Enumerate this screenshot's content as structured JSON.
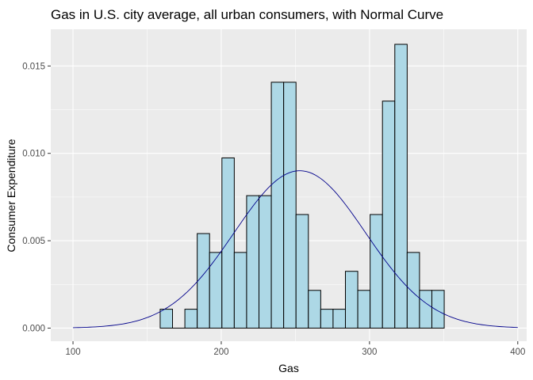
{
  "chart_data": {
    "type": "bar",
    "title": "Gas in U.S. city average, all urban consumers, with Normal Curve",
    "xlabel": "Gas",
    "ylabel": "Consumer Expenditure",
    "xlim": [
      85,
      406
    ],
    "ylim": [
      -0.00075,
      0.0171
    ],
    "x_ticks": [
      100,
      200,
      300,
      400
    ],
    "x_tick_labels": [
      "100",
      "200",
      "300",
      "400"
    ],
    "y_ticks": [
      0,
      0.005,
      0.01,
      0.015
    ],
    "y_tick_labels": [
      "0.000",
      "0.005",
      "0.010",
      "0.015"
    ],
    "grid": true,
    "bin_width": 8.33,
    "bin_start": 158.8,
    "histogram_density": [
      0.00108,
      0,
      0.00108,
      0.00541,
      0.00433,
      0.00974,
      0.00433,
      0.00758,
      0.00758,
      0.01407,
      0.01407,
      0.0065,
      0.00216,
      0.00108,
      0.00108,
      0.00325,
      0.00216,
      0.0065,
      0.01299,
      0.01624,
      0.00433,
      0.00216,
      0.00216
    ],
    "normal_curve": {
      "mean": 253,
      "sd": 44.3,
      "x_range": [
        100,
        400
      ]
    },
    "colors": {
      "panel_background": "#ebebeb",
      "grid_major": "#ffffff",
      "bar_fill": "#add8e6",
      "bar_stroke": "#000000",
      "curve": "#00008b"
    }
  }
}
